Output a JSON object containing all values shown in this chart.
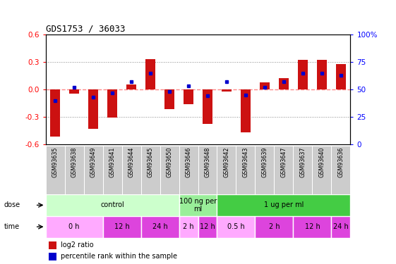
{
  "title": "GDS1753 / 36033",
  "samples": [
    "GSM93635",
    "GSM93638",
    "GSM93649",
    "GSM93641",
    "GSM93644",
    "GSM93645",
    "GSM93650",
    "GSM93646",
    "GSM93648",
    "GSM93642",
    "GSM93643",
    "GSM93639",
    "GSM93647",
    "GSM93637",
    "GSM93640",
    "GSM93636"
  ],
  "log2_ratio": [
    -0.52,
    -0.05,
    -0.43,
    -0.31,
    0.05,
    0.33,
    -0.22,
    -0.16,
    -0.38,
    -0.02,
    -0.47,
    0.08,
    0.12,
    0.32,
    0.32,
    0.28
  ],
  "percentile": [
    40,
    52,
    43,
    47,
    57,
    65,
    48,
    53,
    44,
    57,
    45,
    52,
    57,
    65,
    65,
    63
  ],
  "ylim": [
    -0.6,
    0.6
  ],
  "yticks_left": [
    -0.6,
    -0.3,
    0.0,
    0.3,
    0.6
  ],
  "yticks_right_labels": [
    "0",
    "25",
    "50",
    "75",
    "100%"
  ],
  "dose_groups": [
    {
      "label": "control",
      "start": 0,
      "end": 7,
      "color": "#ccffcc"
    },
    {
      "label": "100 ng per\nml",
      "start": 7,
      "end": 9,
      "color": "#99ee99"
    },
    {
      "label": "1 ug per ml",
      "start": 9,
      "end": 16,
      "color": "#44cc44"
    }
  ],
  "time_groups": [
    {
      "label": "0 h",
      "start": 0,
      "end": 3,
      "color": "#ffaaff"
    },
    {
      "label": "12 h",
      "start": 3,
      "end": 5,
      "color": "#dd44dd"
    },
    {
      "label": "24 h",
      "start": 5,
      "end": 7,
      "color": "#dd44dd"
    },
    {
      "label": "2 h",
      "start": 7,
      "end": 8,
      "color": "#ffaaff"
    },
    {
      "label": "12 h",
      "start": 8,
      "end": 9,
      "color": "#dd44dd"
    },
    {
      "label": "0.5 h",
      "start": 9,
      "end": 11,
      "color": "#ffaaff"
    },
    {
      "label": "2 h",
      "start": 11,
      "end": 13,
      "color": "#dd44dd"
    },
    {
      "label": "12 h",
      "start": 13,
      "end": 15,
      "color": "#dd44dd"
    },
    {
      "label": "24 h",
      "start": 15,
      "end": 16,
      "color": "#dd44dd"
    }
  ],
  "bar_color": "#cc1111",
  "dot_color": "#0000cc",
  "zero_line_color": "#ff8888",
  "grid_color": "#888888",
  "sample_cell_color": "#cccccc",
  "plot_bg_color": "#ffffff",
  "fig_bg_color": "#ffffff"
}
